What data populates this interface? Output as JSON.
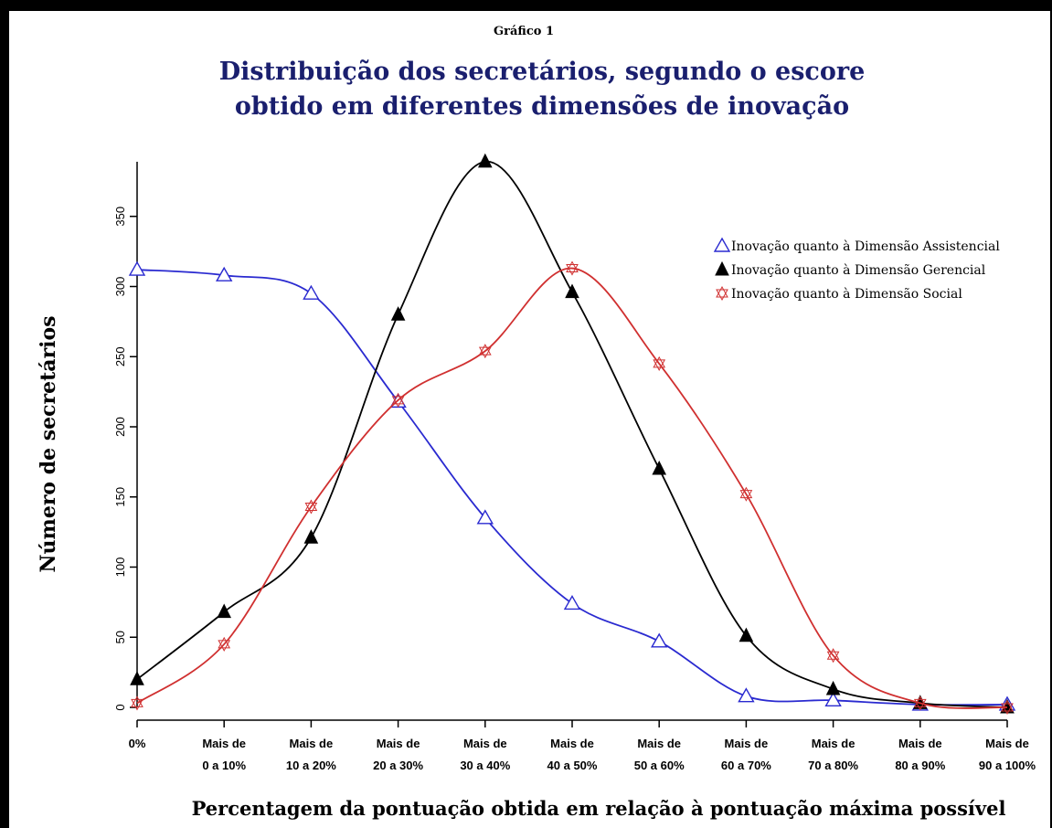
{
  "header": {
    "caption": "Gráfico 1"
  },
  "chart_data": {
    "type": "line",
    "title": "Distribuição dos secretários, segundo o escore obtido em diferentes dimensões de inovação",
    "title_lines": [
      "Distribuição dos secretários, segundo o escore",
      "obtido em diferentes dimensões de inovação"
    ],
    "xlabel": "Percentagem da pontuação obtida em relação à pontuação máxima possível",
    "ylabel": "Número de secretários",
    "categories": [
      "0%",
      "Mais de 0 a 10%",
      "Mais de 10 a 20%",
      "Mais de 20 a 30%",
      "Mais de 30 a 40%",
      "Mais de 40 a 50%",
      "Mais de 50 a 60%",
      "Mais de 60 a 70%",
      "Mais de 70 a 80%",
      "Mais de 80 a 90%",
      "Mais de 90 a 100%"
    ],
    "category_lines": [
      [
        "0%"
      ],
      [
        "Mais de",
        "0 a 10%"
      ],
      [
        "Mais de",
        "10 a 20%"
      ],
      [
        "Mais de",
        "20 a 30%"
      ],
      [
        "Mais de",
        "30 a 40%"
      ],
      [
        "Mais de",
        "40 a 50%"
      ],
      [
        "Mais de",
        "50 a 60%"
      ],
      [
        "Mais de",
        "60 a 70%"
      ],
      [
        "Mais de",
        "70 a 80%"
      ],
      [
        "Mais de",
        "80 a 90%"
      ],
      [
        "Mais de",
        "90 a 100%"
      ]
    ],
    "yticks": [
      0,
      50,
      100,
      150,
      200,
      250,
      300,
      350
    ],
    "ylim": [
      0,
      390
    ],
    "grid": false,
    "legend_position": "top-right",
    "series": [
      {
        "name": "Inovação quanto à Dimensão Assistencial",
        "marker": "open-triangle",
        "color": "#2a2ad0",
        "values": [
          312,
          308,
          295,
          218,
          135,
          74,
          47,
          8,
          5,
          2,
          2
        ]
      },
      {
        "name": "Inovação quanto à Dimensão Gerencial",
        "marker": "filled-triangle",
        "color": "#000000",
        "values": [
          20,
          68,
          121,
          280,
          389,
          296,
          170,
          51,
          13,
          3,
          0
        ]
      },
      {
        "name": "Inovação quanto à Dimensão Social",
        "marker": "star",
        "color": "#d03030",
        "values": [
          3,
          45,
          143,
          219,
          254,
          313,
          245,
          152,
          37,
          3,
          0
        ]
      }
    ]
  }
}
